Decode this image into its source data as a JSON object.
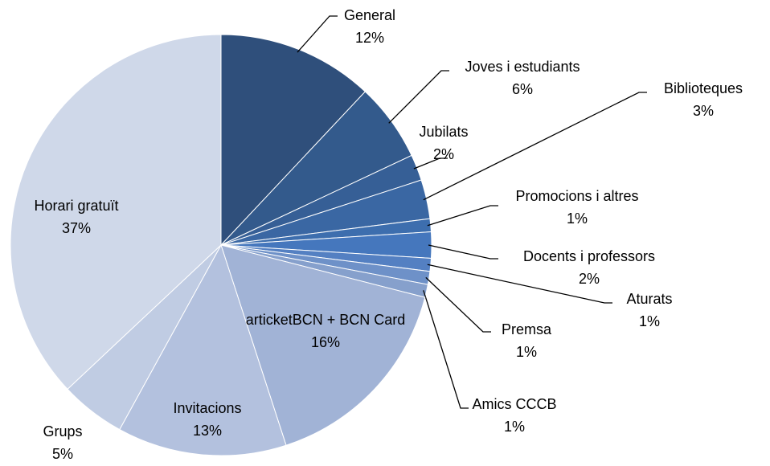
{
  "chart_data": {
    "type": "pie",
    "categories": [
      "General",
      "Joves i estudiants",
      "Jubilats",
      "Biblioteques",
      "Promocions i altres",
      "Docents i professors",
      "Aturats",
      "Premsa",
      "Amics CCCB",
      "articketBCN + BCN Card",
      "Invitacions",
      "Grups",
      "Horari gratuït"
    ],
    "values": [
      12,
      6,
      2,
      3,
      1,
      2,
      1,
      1,
      1,
      16,
      13,
      5,
      37
    ],
    "value_labels": [
      "12%",
      "6%",
      "2%",
      "3%",
      "1%",
      "2%",
      "1%",
      "1%",
      "1%",
      "16%",
      "13%",
      "5%",
      "37%"
    ],
    "colors": [
      "#2f4f7b",
      "#335a8c",
      "#365f96",
      "#3a67a3",
      "#3d6eae",
      "#4577bd",
      "#5480c2",
      "#6e91c8",
      "#86a0cc",
      "#a1b3d6",
      "#b3c1de",
      "#c0cce3",
      "#cfd8e9"
    ]
  }
}
